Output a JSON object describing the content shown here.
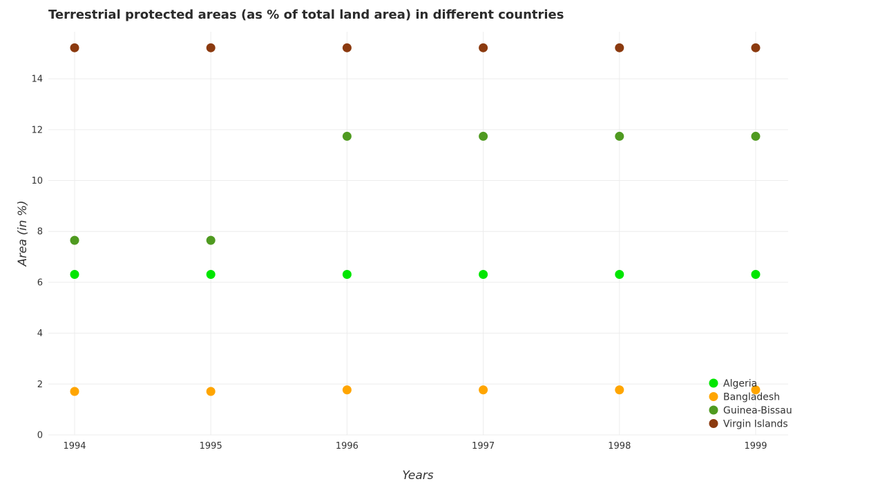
{
  "chart_data": {
    "type": "scatter",
    "title": "Terrestrial protected areas (as % of total land area) in different countries",
    "xlabel": "Years",
    "ylabel": "Area (in %)",
    "categories": [
      "1994",
      "1995",
      "1996",
      "1997",
      "1998",
      "1999"
    ],
    "ylim": [
      0,
      15.85
    ],
    "yticks": [
      0,
      2,
      4,
      6,
      8,
      10,
      12,
      14
    ],
    "grid": true,
    "legend_position": "bottom-right",
    "series": [
      {
        "name": "Algeria",
        "color": "#00e600",
        "values": [
          6.31,
          6.31,
          6.31,
          6.31,
          6.31,
          6.31
        ]
      },
      {
        "name": "Bangladesh",
        "color": "#ffa500",
        "values": [
          1.71,
          1.71,
          1.77,
          1.77,
          1.77,
          1.77
        ]
      },
      {
        "name": "Guinea-Bissau",
        "color": "#4f9a20",
        "values": [
          7.65,
          7.65,
          11.74,
          11.74,
          11.74,
          11.74
        ]
      },
      {
        "name": "Virgin Islands",
        "color": "#8b3a0f",
        "values": [
          15.22,
          15.22,
          15.22,
          15.22,
          15.22,
          15.22
        ]
      }
    ]
  }
}
